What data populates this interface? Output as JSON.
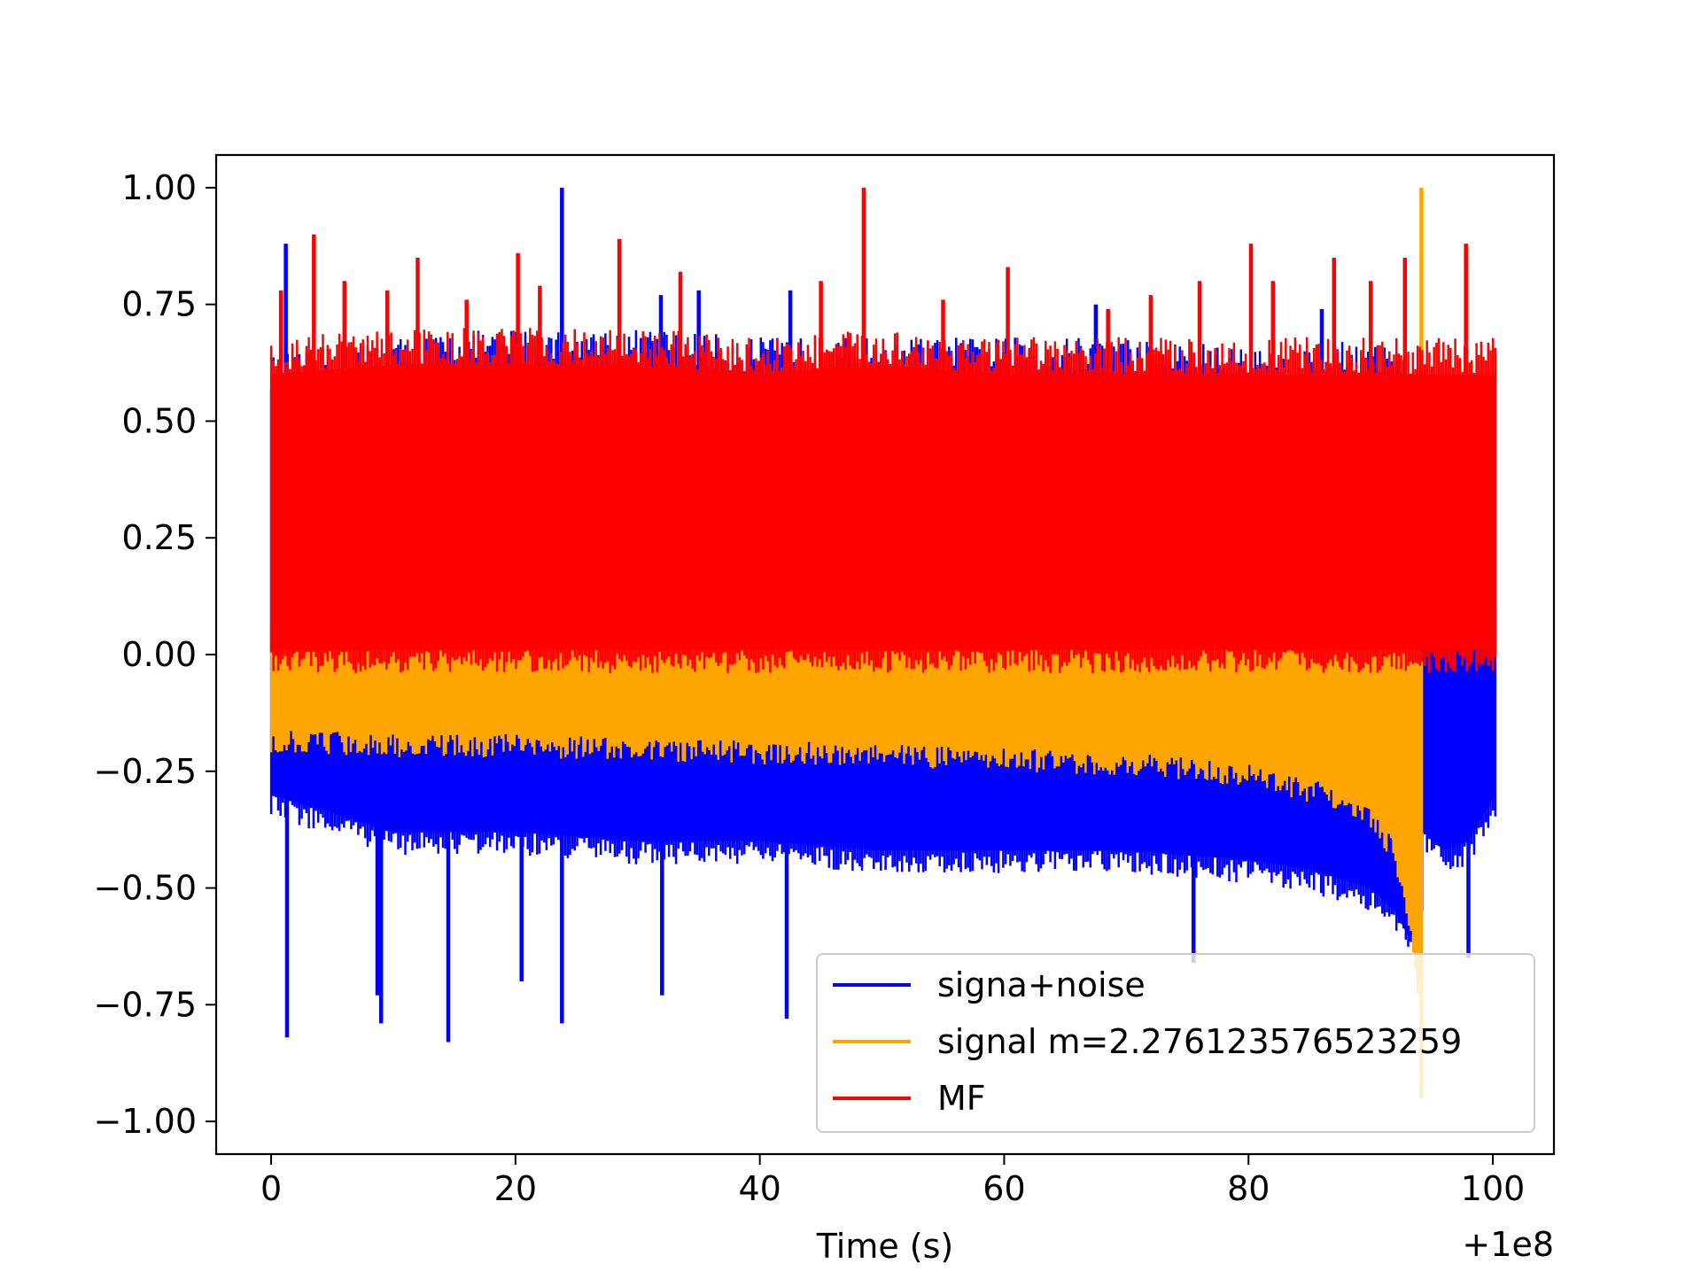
{
  "chart_data": {
    "type": "line",
    "title": "",
    "xlabel": "Time (s)",
    "ylabel": "",
    "x_offset_label": "+1e8",
    "xlim": [
      -4.5,
      105
    ],
    "ylim": [
      -1.07,
      1.07
    ],
    "xticks": [
      0,
      20,
      40,
      60,
      80,
      100
    ],
    "xtick_labels": [
      "0",
      "20",
      "40",
      "60",
      "80",
      "100"
    ],
    "yticks": [
      1.0,
      0.75,
      0.5,
      0.25,
      0.0,
      -0.25,
      -0.5,
      -0.75,
      -1.0
    ],
    "ytick_labels": [
      "1.00",
      "0.75",
      "0.50",
      "0.25",
      "0.00",
      "−0.25",
      "−0.50",
      "−0.75",
      "−1.00"
    ],
    "grid": false,
    "legend_position": "lower-right",
    "series": [
      {
        "name": "signa+noise",
        "color": "#0000ff",
        "envelope": {
          "x": [
            0,
            10,
            20,
            30,
            40,
            50,
            60,
            70,
            80,
            85,
            90,
            92,
            93,
            94.2,
            94.3,
            96,
            98,
            100.2
          ],
          "upper": [
            0.56,
            0.6,
            0.62,
            0.62,
            0.6,
            0.6,
            0.6,
            0.6,
            0.58,
            0.58,
            0.6,
            0.58,
            0.55,
            0.5,
            0.02,
            0.03,
            0.03,
            0.03
          ],
          "lower": [
            -0.3,
            -0.38,
            -0.38,
            -0.4,
            -0.4,
            -0.42,
            -0.42,
            -0.42,
            -0.44,
            -0.46,
            -0.5,
            -0.55,
            -0.6,
            -0.6,
            -0.38,
            -0.42,
            -0.4,
            -0.3
          ]
        },
        "spikes": [
          {
            "x": 1.2,
            "y": 0.88
          },
          {
            "x": 23.8,
            "y": 1.0
          },
          {
            "x": 31.9,
            "y": 0.77
          },
          {
            "x": 35,
            "y": 0.78
          },
          {
            "x": 42.5,
            "y": 0.78
          },
          {
            "x": 67.5,
            "y": 0.75
          },
          {
            "x": 86,
            "y": 0.74
          },
          {
            "x": 1.3,
            "y": -0.82
          },
          {
            "x": 8.7,
            "y": -0.73
          },
          {
            "x": 9,
            "y": -0.79
          },
          {
            "x": 14.5,
            "y": -0.83
          },
          {
            "x": 23.8,
            "y": -0.79
          },
          {
            "x": 32,
            "y": -0.73
          },
          {
            "x": 42.2,
            "y": -0.78
          },
          {
            "x": 20.5,
            "y": -0.7
          },
          {
            "x": 75.5,
            "y": -0.66
          },
          {
            "x": 98,
            "y": -0.65
          }
        ]
      },
      {
        "name": "signal m=2.276123576523259",
        "color": "#ffa500",
        "envelope": {
          "x": [
            0,
            10,
            20,
            30,
            40,
            50,
            60,
            70,
            75,
            80,
            84,
            87,
            89,
            90.5,
            91.5,
            92.5,
            93.2,
            93.8,
            94.2
          ],
          "upper": [
            0.0,
            0.01,
            0.01,
            0.01,
            0.01,
            0.01,
            0.01,
            0.01,
            0.02,
            0.02,
            0.02,
            0.02,
            0.03,
            0.02,
            0.02,
            0.01,
            0.01,
            0.0,
            0.0
          ],
          "lower": [
            -0.16,
            -0.17,
            -0.17,
            -0.18,
            -0.185,
            -0.19,
            -0.2,
            -0.21,
            -0.22,
            -0.235,
            -0.26,
            -0.28,
            -0.31,
            -0.34,
            -0.38,
            -0.45,
            -0.55,
            -0.7,
            -0.7
          ]
        },
        "spikes": [
          {
            "x": 94.15,
            "y": 1.0
          },
          {
            "x": 94.15,
            "y": -0.95
          }
        ]
      },
      {
        "name": "MF",
        "color": "#ff0000",
        "envelope": {
          "x": [
            0,
            10,
            20,
            30,
            40,
            50,
            60,
            70,
            80,
            90,
            94,
            96,
            98,
            100.2
          ],
          "upper": [
            0.6,
            0.62,
            0.62,
            0.62,
            0.6,
            0.62,
            0.6,
            0.6,
            0.6,
            0.6,
            0.6,
            0.6,
            0.6,
            0.6
          ],
          "lower": [
            0.01,
            0.01,
            0.01,
            0.01,
            0.01,
            0.01,
            0.01,
            0.01,
            0.01,
            0.01,
            0.01,
            0.01,
            0.01,
            0.01
          ]
        },
        "spikes": [
          {
            "x": 3.5,
            "y": 0.9
          },
          {
            "x": 12,
            "y": 0.85
          },
          {
            "x": 20.2,
            "y": 0.86
          },
          {
            "x": 28.5,
            "y": 0.89
          },
          {
            "x": 48.5,
            "y": 1.0
          },
          {
            "x": 80.2,
            "y": 0.88
          },
          {
            "x": 87,
            "y": 0.85
          },
          {
            "x": 97.8,
            "y": 0.88
          },
          {
            "x": 92.8,
            "y": 0.85
          },
          {
            "x": 55,
            "y": 0.76
          },
          {
            "x": 0.8,
            "y": 0.78
          },
          {
            "x": 6,
            "y": 0.8
          },
          {
            "x": 9.5,
            "y": 0.78
          },
          {
            "x": 16,
            "y": 0.76
          },
          {
            "x": 22,
            "y": 0.79
          },
          {
            "x": 33.5,
            "y": 0.82
          },
          {
            "x": 45,
            "y": 0.8
          },
          {
            "x": 60.3,
            "y": 0.83
          },
          {
            "x": 68.5,
            "y": 0.74
          },
          {
            "x": 72,
            "y": 0.77
          },
          {
            "x": 76,
            "y": 0.8
          },
          {
            "x": 82,
            "y": 0.8
          },
          {
            "x": 90,
            "y": 0.8
          }
        ]
      }
    ]
  }
}
